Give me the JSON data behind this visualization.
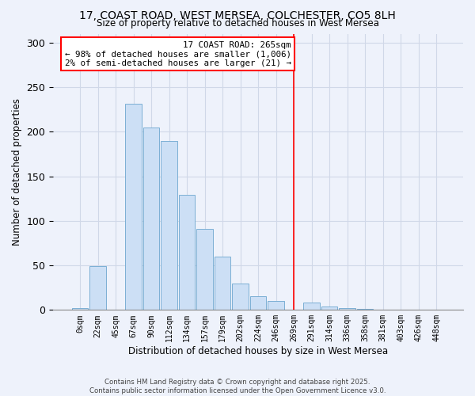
{
  "title": "17, COAST ROAD, WEST MERSEA, COLCHESTER, CO5 8LH",
  "subtitle": "Size of property relative to detached houses in West Mersea",
  "xlabel": "Distribution of detached houses by size in West Mersea",
  "ylabel": "Number of detached properties",
  "bar_labels": [
    "0sqm",
    "22sqm",
    "45sqm",
    "67sqm",
    "90sqm",
    "112sqm",
    "134sqm",
    "157sqm",
    "179sqm",
    "202sqm",
    "224sqm",
    "246sqm",
    "269sqm",
    "291sqm",
    "314sqm",
    "336sqm",
    "358sqm",
    "381sqm",
    "403sqm",
    "426sqm",
    "448sqm"
  ],
  "bar_values": [
    2,
    49,
    0,
    231,
    205,
    190,
    129,
    91,
    60,
    30,
    15,
    10,
    0,
    8,
    4,
    2,
    1,
    0,
    0,
    0,
    0
  ],
  "bar_color": "#ccdff5",
  "bar_edge_color": "#7bafd4",
  "vline_x": 12,
  "vline_color": "red",
  "annotation_title": "17 COAST ROAD: 265sqm",
  "annotation_line1": "← 98% of detached houses are smaller (1,006)",
  "annotation_line2": "2% of semi-detached houses are larger (21) →",
  "annotation_box_color": "#ffffff",
  "annotation_box_edge": "red",
  "ylim": [
    0,
    310
  ],
  "yticks": [
    0,
    50,
    100,
    150,
    200,
    250,
    300
  ],
  "footer_line1": "Contains HM Land Registry data © Crown copyright and database right 2025.",
  "footer_line2": "Contains public sector information licensed under the Open Government Licence v3.0.",
  "background_color": "#eef2fb",
  "grid_color": "#d0d8e8"
}
